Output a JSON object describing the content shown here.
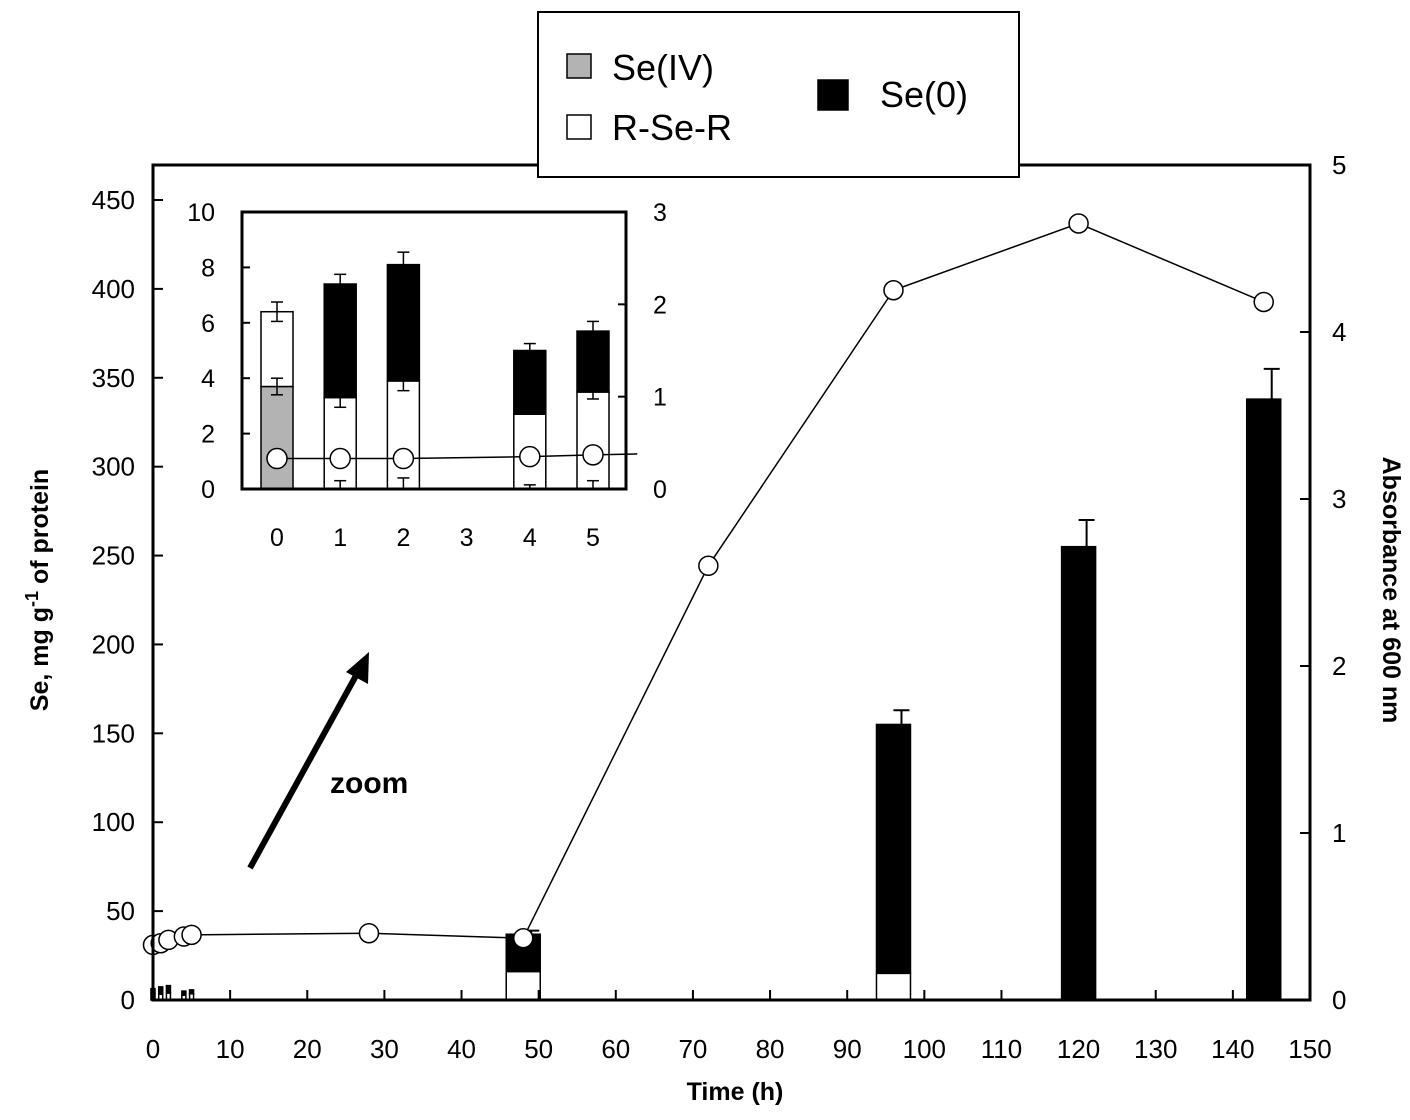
{
  "colors": {
    "se_iv": "#b3b3b3",
    "r_se_r": "#ffffff",
    "se_0": "#000000",
    "line": "#000000"
  },
  "legend": {
    "items": [
      {
        "label": "Se(IV)",
        "color": "#b3b3b3"
      },
      {
        "label": "R-Se-R",
        "color": "#ffffff"
      },
      {
        "label": "Se(0)",
        "color": "#000000"
      }
    ]
  },
  "annotation": {
    "zoom_label": "zoom"
  },
  "chart_data": [
    {
      "type": "bar",
      "stacked": true,
      "xlabel": "Time (h)",
      "ylabel": "Se, mg g",
      "ylabel_sup": "-1",
      "ylabel_tail": " of protein",
      "y2label": "Absorbance at 600 nm",
      "xlim": [
        0,
        150
      ],
      "ylim": [
        0,
        450
      ],
      "y2lim": [
        0,
        5
      ],
      "xticks": [
        0,
        10,
        20,
        30,
        40,
        50,
        60,
        70,
        80,
        90,
        100,
        110,
        120,
        130,
        140,
        150
      ],
      "yticks": [
        0,
        50,
        100,
        150,
        200,
        250,
        300,
        350,
        400,
        450
      ],
      "y2ticks": [
        0,
        1,
        2,
        3,
        4,
        5
      ],
      "grid": false,
      "legend_position": "top-center",
      "bars": [
        {
          "x": 0,
          "se_iv": 3.7,
          "r_se_r": 2.7,
          "se_0": 0
        },
        {
          "x": 1,
          "se_iv": 0,
          "r_se_r": 3.3,
          "se_0": 4.1
        },
        {
          "x": 2,
          "se_iv": 0,
          "r_se_r": 3.9,
          "se_0": 4.2
        },
        {
          "x": 4,
          "se_iv": 0,
          "r_se_r": 2.7,
          "se_0": 2.3
        },
        {
          "x": 5,
          "se_iv": 0,
          "r_se_r": 3.5,
          "se_0": 2.2
        },
        {
          "x": 48,
          "se_iv": 0,
          "r_se_r": 16,
          "se_0": 21,
          "err": 2
        },
        {
          "x": 96,
          "se_iv": 0,
          "r_se_r": 15,
          "se_0": 140,
          "err": 8
        },
        {
          "x": 120,
          "se_iv": 0,
          "r_se_r": 0,
          "se_0": 255,
          "err": 15
        },
        {
          "x": 144,
          "se_iv": 0,
          "r_se_r": 0,
          "se_0": 338,
          "err": 17
        }
      ],
      "absorbance": {
        "x": [
          0,
          1,
          2,
          4,
          5,
          28,
          48,
          72,
          96,
          120,
          144
        ],
        "y": [
          0.33,
          0.34,
          0.36,
          0.38,
          0.39,
          0.4,
          0.37,
          2.6,
          4.25,
          4.65,
          4.18
        ]
      }
    },
    {
      "type": "bar",
      "stacked": true,
      "inset": true,
      "xlim": [
        -0.5,
        5.5
      ],
      "ylim": [
        0,
        10
      ],
      "y2lim": [
        0,
        3
      ],
      "xticks": [
        0,
        1,
        2,
        3,
        4,
        5
      ],
      "yticks": [
        0,
        2,
        4,
        6,
        8,
        10
      ],
      "y2ticks": [
        0,
        1,
        2,
        3
      ],
      "bars": [
        {
          "x": 0,
          "se_iv": 3.7,
          "r_se_r": 2.7,
          "se_0": 0,
          "err_low": 0.3,
          "err_top": 0.35
        },
        {
          "x": 1,
          "se_iv": 0,
          "r_se_r": 3.3,
          "se_0": 4.1,
          "err_low": 0.35,
          "err_top": 0.35,
          "err_base": 0.3
        },
        {
          "x": 2,
          "se_iv": 0,
          "r_se_r": 3.9,
          "se_0": 4.2,
          "err_low": 0.35,
          "err_top": 0.45,
          "err_base": 0.4
        },
        {
          "x": 4,
          "se_iv": 0,
          "r_se_r": 2.7,
          "se_0": 2.3,
          "err_top": 0.25,
          "err_base": 0.15
        },
        {
          "x": 5,
          "se_iv": 0,
          "r_se_r": 3.5,
          "se_0": 2.2,
          "err_low": 0.25,
          "err_top": 0.35,
          "err_base": 0.3
        }
      ],
      "absorbance": {
        "x": [
          0,
          1,
          2,
          4,
          5,
          5.7
        ],
        "y": [
          0.33,
          0.33,
          0.33,
          0.35,
          0.37,
          0.38
        ]
      }
    }
  ]
}
